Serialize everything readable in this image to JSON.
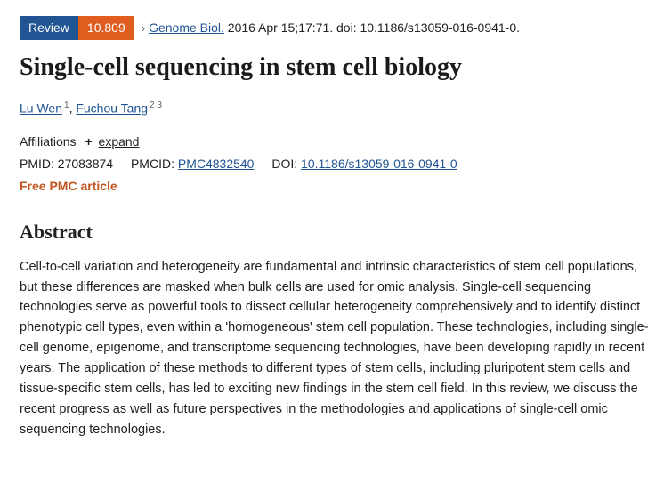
{
  "badges": {
    "review": "Review",
    "metric": "10.809"
  },
  "citation": {
    "journal": "Genome Biol.",
    "rest": "2016 Apr 15;17:71. doi: 10.1186/s13059-016-0941-0."
  },
  "title": "Single-cell sequencing in stem cell biology",
  "authors": [
    {
      "name": "Lu Wen",
      "affs": "1"
    },
    {
      "name": "Fuchou Tang",
      "affs": "2  3"
    }
  ],
  "affiliations": {
    "label": "Affiliations",
    "expand": "expand"
  },
  "ids": {
    "pmid_label": "PMID:",
    "pmid": "27083874",
    "pmcid_label": "PMCID:",
    "pmcid": "PMC4832540",
    "doi_label": "DOI:",
    "doi": "10.1186/s13059-016-0941-0"
  },
  "free_pmc": "Free PMC article",
  "abstract": {
    "heading": "Abstract",
    "text": "Cell-to-cell variation and heterogeneity are fundamental and intrinsic characteristics of stem cell populations, but these differences are masked when bulk cells are used for omic analysis. Single-cell sequencing technologies serve as powerful tools to dissect cellular heterogeneity comprehensively and to identify distinct phenotypic cell types, even within a 'homogeneous' stem cell population. These technologies, including single-cell genome, epigenome, and transcriptome sequencing technologies, have been developing rapidly in recent years. The application of these methods to different types of stem cells, including pluripotent stem cells and tissue-specific stem cells, has led to exciting new findings in the stem cell field. In this review, we discuss the recent progress as well as future perspectives in the methodologies and applications of single-cell omic sequencing technologies."
  }
}
